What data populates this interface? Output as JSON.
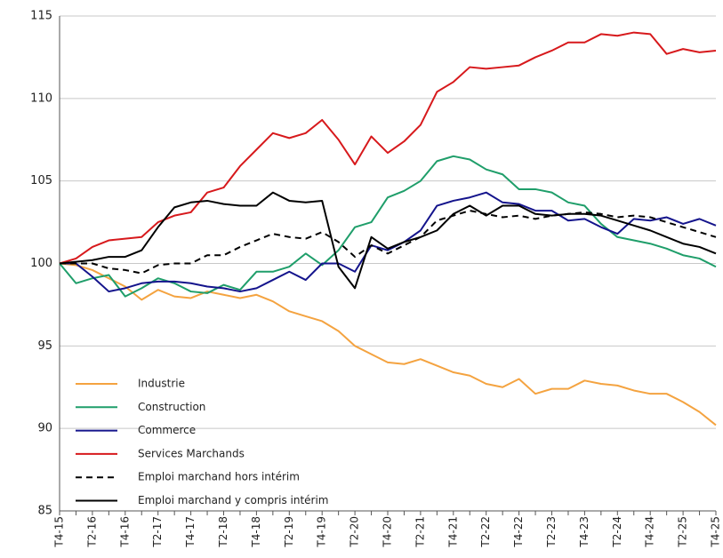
{
  "chart_data": {
    "type": "line",
    "categories": [
      "T4-15",
      null,
      "T2-16",
      null,
      "T4-16",
      null,
      "T2-17",
      null,
      "T4-17",
      null,
      "T2-18",
      null,
      "T4-18",
      null,
      "T2-19",
      null,
      "T4-19",
      null,
      "T2-20",
      null,
      "T4-20",
      null,
      "T2-21",
      null,
      "T4-21",
      null,
      "T2-22",
      null,
      "T4-22",
      null,
      "T2-23",
      null,
      "T4-23",
      null,
      "T2-24",
      null,
      "T4-24",
      null,
      "T2-25",
      null,
      "T4-25"
    ],
    "ylim": [
      85,
      115
    ],
    "yticks": [
      85,
      90,
      95,
      100,
      105,
      110,
      115
    ],
    "grid": true,
    "legend": "lower left",
    "series": [
      {
        "name": "Industrie",
        "color": "#f4a340",
        "dashed": false,
        "values": [
          100,
          99.9,
          99.6,
          99.1,
          98.6,
          97.8,
          98.4,
          98,
          97.9,
          98.3,
          98.1,
          97.9,
          98.1,
          97.7,
          97.1,
          96.8,
          96.5,
          95.9,
          95,
          94.5,
          94,
          93.9,
          94.2,
          93.8,
          93.4,
          93.2,
          92.7,
          92.5,
          93,
          92.1,
          92.4,
          92.4,
          92.9,
          92.7,
          92.6,
          92.3,
          92.1,
          92.1,
          91.6,
          91,
          90.2
        ]
      },
      {
        "name": "Construction",
        "color": "#1f9e6a",
        "dashed": false,
        "values": [
          100,
          98.8,
          99.1,
          99.3,
          98,
          98.5,
          99.1,
          98.8,
          98.3,
          98.2,
          98.7,
          98.4,
          99.5,
          99.5,
          99.8,
          100.6,
          99.9,
          100.8,
          102.2,
          102.5,
          104,
          104.4,
          105,
          106.2,
          106.5,
          106.3,
          105.7,
          105.4,
          104.5,
          104.5,
          104.3,
          103.7,
          103.5,
          102.4,
          101.6,
          101.4,
          101.2,
          100.9,
          100.5,
          100.3,
          99.8
        ]
      },
      {
        "name": "Commerce",
        "color": "#14148c",
        "dashed": false,
        "values": [
          100,
          100,
          99.2,
          98.3,
          98.5,
          98.8,
          98.9,
          98.9,
          98.8,
          98.6,
          98.5,
          98.3,
          98.5,
          99,
          99.5,
          99,
          100,
          100,
          99.5,
          101.1,
          100.8,
          101.3,
          102,
          103.5,
          103.8,
          104,
          104.3,
          103.7,
          103.6,
          103.2,
          103.2,
          102.6,
          102.7,
          102.2,
          101.8,
          102.7,
          102.6,
          102.8,
          102.4,
          102.7,
          102.3
        ]
      },
      {
        "name": "Services Marchands",
        "color": "#d7191c",
        "dashed": false,
        "values": [
          100,
          100.3,
          101,
          101.4,
          101.5,
          101.6,
          102.5,
          102.9,
          103.1,
          104.3,
          104.6,
          105.9,
          106.9,
          107.9,
          107.6,
          107.9,
          108.7,
          107.5,
          106,
          107.7,
          106.7,
          107.4,
          108.4,
          110.4,
          111,
          111.9,
          111.8,
          111.9,
          112,
          112.5,
          112.9,
          113.4,
          113.4,
          113.9,
          113.8,
          114,
          113.9,
          112.7,
          113,
          112.8,
          112.9
        ]
      },
      {
        "name": "Emploi marchand hors intérim",
        "color": "#000000",
        "dashed": true,
        "values": [
          100,
          100,
          100,
          99.7,
          99.6,
          99.4,
          99.9,
          100,
          100,
          100.5,
          100.5,
          101,
          101.4,
          101.8,
          101.6,
          101.5,
          101.9,
          101.3,
          100.4,
          101.1,
          100.6,
          101.1,
          101.6,
          102.6,
          102.9,
          103.2,
          103,
          102.8,
          102.9,
          102.7,
          102.9,
          103,
          103.1,
          103,
          102.8,
          102.9,
          102.8,
          102.5,
          102.2,
          101.9,
          101.6
        ]
      },
      {
        "name": "Emploi marchand y compris intérim",
        "color": "#000000",
        "dashed": false,
        "values": [
          100,
          100.1,
          100.2,
          100.4,
          100.4,
          100.8,
          102.2,
          103.4,
          103.7,
          103.8,
          103.6,
          103.5,
          103.5,
          104.3,
          103.8,
          103.7,
          103.8,
          99.8,
          98.5,
          101.6,
          100.9,
          101.3,
          101.6,
          102,
          103,
          103.5,
          102.9,
          103.5,
          103.5,
          103,
          102.9,
          103,
          103,
          102.9,
          102.6,
          102.3,
          102,
          101.6,
          101.2,
          101,
          100.6
        ]
      }
    ]
  }
}
